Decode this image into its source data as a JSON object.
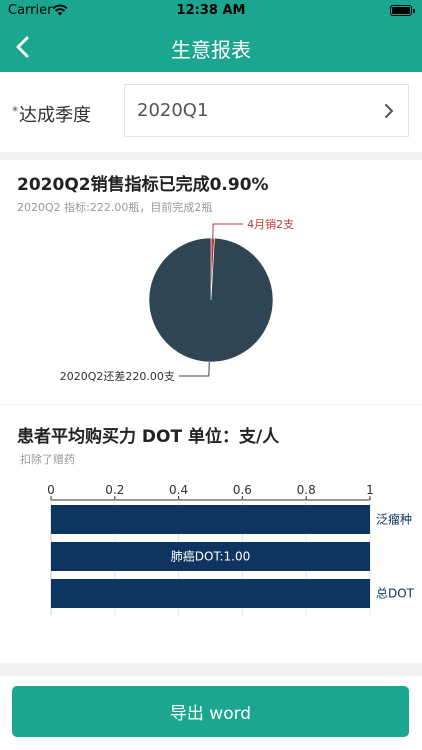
{
  "status": {
    "carrier": "Carrier",
    "time": "12:38 AM"
  },
  "nav": {
    "title": "生意报表"
  },
  "quarter": {
    "required_mark": "*",
    "label": "达成季度",
    "value": "2020Q1"
  },
  "sales": {
    "title": "2020Q2销售指标已完成0.90%",
    "subtitle": "2020Q2 指标:222.00瓶，目前完成2瓶"
  },
  "dot": {
    "title": "患者平均购买力 DOT 单位：支/人",
    "subtitle": "扣除了赠药"
  },
  "footer": {
    "export_label": "导出 word"
  },
  "chart_data": [
    {
      "type": "pie",
      "slices": [
        {
          "label": "4月销2支",
          "value": 2,
          "color": "#c23531"
        },
        {
          "label": "2020Q2还差220.00支",
          "value": 220,
          "color": "#2f4554"
        }
      ]
    },
    {
      "type": "bar",
      "orientation": "horizontal",
      "xlim": [
        0,
        1
      ],
      "ticks": [
        "0",
        "0.2",
        "0.4",
        "0.6",
        "0.8",
        "1"
      ],
      "bar_color": "#0e3460",
      "bars": [
        {
          "category": "泛瘤种",
          "value": 1.0,
          "label": "泛瘤种"
        },
        {
          "category": "肺癌",
          "value": 1.0,
          "label": "肺癌DOT:1.00"
        },
        {
          "category": "总DOT",
          "value": 1.0,
          "label": "总DOT"
        }
      ]
    }
  ]
}
